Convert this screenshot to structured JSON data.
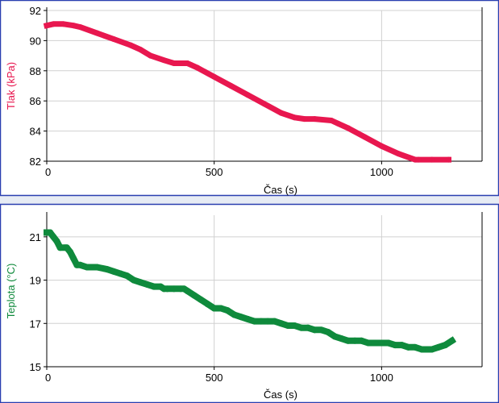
{
  "colors": {
    "panel_border": "#2a3fb0",
    "gap": "#e7ecf4",
    "grid": "#d0d0d0",
    "pressure": "#e8174f",
    "temperature": "#0f8a3c"
  },
  "chart_data": [
    {
      "type": "line",
      "xlabel": "Čas (s)",
      "ylabel": "Tlak (kPa)",
      "xlim": [
        0,
        1300
      ],
      "ylim": [
        82,
        92
      ],
      "x_ticks": [
        "0",
        "500",
        "1000"
      ],
      "y_ticks": [
        "92",
        "90",
        "88",
        "86",
        "84",
        "82"
      ],
      "x_tick_values": [
        0,
        500,
        1000
      ],
      "y_tick_values": [
        92,
        90,
        88,
        86,
        84,
        82
      ],
      "grid": true,
      "series": [
        {
          "color": "#e8174f",
          "x": [
            0,
            20,
            50,
            80,
            100,
            150,
            200,
            250,
            280,
            310,
            350,
            380,
            420,
            430,
            450,
            500,
            550,
            600,
            650,
            700,
            740,
            770,
            800,
            850,
            870,
            900,
            950,
            1000,
            1050,
            1100,
            1110,
            1150,
            1200
          ],
          "y": [
            91.0,
            91.1,
            91.1,
            91.0,
            90.9,
            90.5,
            90.1,
            89.7,
            89.4,
            89.0,
            88.7,
            88.5,
            88.5,
            88.4,
            88.2,
            87.6,
            87.0,
            86.4,
            85.8,
            85.2,
            84.9,
            84.8,
            84.8,
            84.7,
            84.5,
            84.2,
            83.6,
            83.0,
            82.5,
            82.1,
            82.1,
            82.1,
            82.1
          ]
        }
      ]
    },
    {
      "type": "line",
      "xlabel": "Čas (s)",
      "ylabel": "Teplota (°C)",
      "xlim": [
        0,
        1300
      ],
      "ylim": [
        15,
        22
      ],
      "x_ticks": [
        "0",
        "500",
        "1000"
      ],
      "y_ticks": [
        "21",
        "19",
        "17",
        "15"
      ],
      "x_tick_values": [
        0,
        500,
        1000
      ],
      "y_tick_values": [
        21,
        19,
        17,
        15
      ],
      "grid": true,
      "series": [
        {
          "color": "#0f8a3c",
          "x": [
            0,
            10,
            20,
            30,
            40,
            55,
            60,
            70,
            80,
            90,
            100,
            120,
            150,
            180,
            200,
            220,
            240,
            260,
            280,
            300,
            320,
            340,
            350,
            360,
            380,
            400,
            410,
            420,
            440,
            460,
            480,
            500,
            520,
            540,
            560,
            580,
            600,
            620,
            640,
            660,
            680,
            700,
            720,
            740,
            760,
            780,
            800,
            820,
            840,
            860,
            880,
            900,
            920,
            940,
            960,
            980,
            1000,
            1020,
            1040,
            1060,
            1080,
            1100,
            1120,
            1140,
            1150,
            1170,
            1190,
            1210
          ],
          "y": [
            21.2,
            21.2,
            21.0,
            20.8,
            20.5,
            20.5,
            20.5,
            20.3,
            20.0,
            19.7,
            19.7,
            19.6,
            19.6,
            19.5,
            19.4,
            19.3,
            19.2,
            19.0,
            18.9,
            18.8,
            18.7,
            18.7,
            18.6,
            18.6,
            18.6,
            18.6,
            18.6,
            18.5,
            18.3,
            18.1,
            17.9,
            17.7,
            17.7,
            17.6,
            17.4,
            17.3,
            17.2,
            17.1,
            17.1,
            17.1,
            17.1,
            17.0,
            16.9,
            16.9,
            16.8,
            16.8,
            16.7,
            16.7,
            16.6,
            16.4,
            16.3,
            16.2,
            16.2,
            16.2,
            16.1,
            16.1,
            16.1,
            16.1,
            16.0,
            16.0,
            15.9,
            15.9,
            15.8,
            15.8,
            15.8,
            15.9,
            16.0,
            16.2
          ]
        }
      ]
    }
  ]
}
